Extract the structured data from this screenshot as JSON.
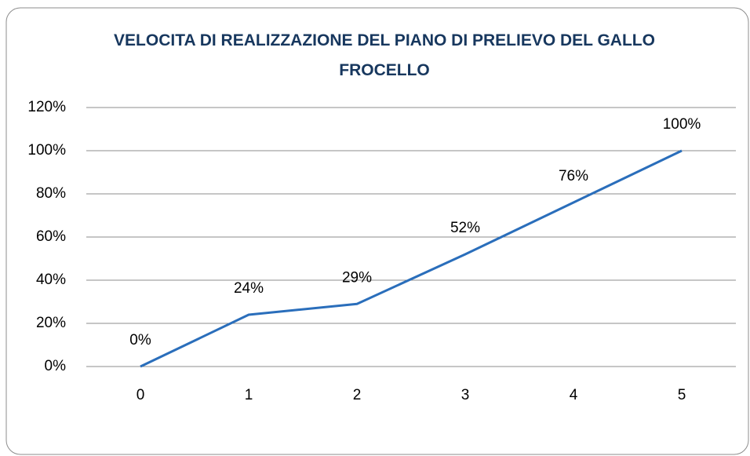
{
  "chart_data": {
    "type": "line",
    "title": "VELOCITA DI REALIZZAZIONE DEL PIANO DI PRELIEVO DEL GALLO FROCELLO",
    "categories": [
      "0",
      "1",
      "2",
      "3",
      "4",
      "5"
    ],
    "values": [
      0,
      24,
      29,
      52,
      76,
      100
    ],
    "value_labels": [
      "0%",
      "24%",
      "29%",
      "52%",
      "76%",
      "100%"
    ],
    "color": "#2a6ebb",
    "ylim": [
      0,
      120
    ],
    "yticks": [
      {
        "value": 0,
        "label": "0%"
      },
      {
        "value": 20,
        "label": "20%"
      },
      {
        "value": 40,
        "label": "40%"
      },
      {
        "value": 60,
        "label": "60%"
      },
      {
        "value": 80,
        "label": "80%"
      },
      {
        "value": 100,
        "label": "100%"
      },
      {
        "value": 120,
        "label": "120%"
      }
    ],
    "grid": true
  }
}
